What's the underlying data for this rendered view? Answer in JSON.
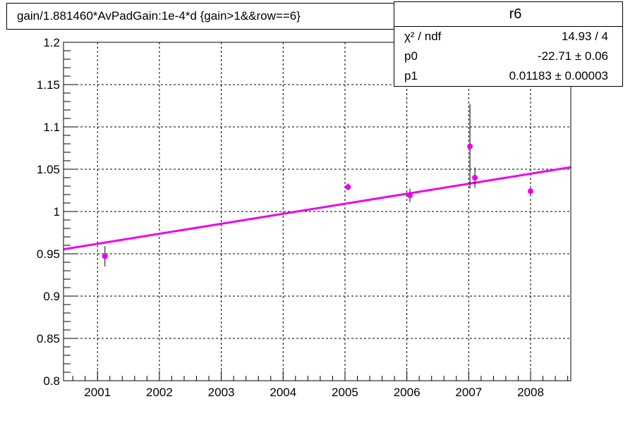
{
  "title": "gain/1.881460*AvPadGain:1e-4*d  {gain>1&&row==6}",
  "stats": {
    "name": "r6",
    "rows": [
      {
        "label": "χ² / ndf",
        "value": "14.93 / 4"
      },
      {
        "label": "p0",
        "value": "-22.71 ± 0.06"
      },
      {
        "label": "p1",
        "value": "0.01183  ± 0.00003"
      }
    ]
  },
  "colors": {
    "points": "#ee00ee",
    "fit": "#ee00ee",
    "grid": "#000000",
    "axis": "#000000"
  },
  "chart_data": {
    "type": "scatter",
    "title": "gain/1.881460*AvPadGain:1e-4*d  {gain>1&&row==6}",
    "xlabel": "",
    "ylabel": "",
    "xlim": [
      2000.45,
      2008.65
    ],
    "ylim": [
      0.8,
      1.2
    ],
    "grid": true,
    "x_ticks": [
      2001,
      2002,
      2003,
      2004,
      2005,
      2006,
      2007,
      2008
    ],
    "y_ticks": [
      0.8,
      0.85,
      0.9,
      0.95,
      1,
      1.05,
      1.1,
      1.15,
      1.2
    ],
    "y_tick_labels": [
      "0.8",
      "0.85",
      "0.9",
      "0.95",
      "1",
      "1.05",
      "1.1",
      "1.15",
      "1.2"
    ],
    "points": [
      {
        "x": 2001.12,
        "y": 0.947,
        "err": 0.012
      },
      {
        "x": 2005.05,
        "y": 1.029,
        "err": 0.004
      },
      {
        "x": 2006.05,
        "y": 1.019,
        "err": 0.008
      },
      {
        "x": 2007.02,
        "y": 1.077,
        "err": 0.05
      },
      {
        "x": 2007.1,
        "y": 1.04,
        "err": 0.012
      },
      {
        "x": 2008.0,
        "y": 1.024,
        "err": 0.004
      }
    ],
    "fit": {
      "function": "p0 + p1*x",
      "p0": -22.71,
      "p1": 0.01183,
      "x_range": [
        2000.45,
        2008.65
      ]
    }
  }
}
